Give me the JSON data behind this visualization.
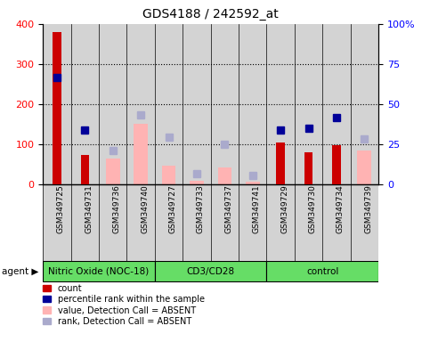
{
  "title": "GDS4188 / 242592_at",
  "samples": [
    "GSM349725",
    "GSM349731",
    "GSM349736",
    "GSM349740",
    "GSM349727",
    "GSM349733",
    "GSM349737",
    "GSM349741",
    "GSM349729",
    "GSM349730",
    "GSM349734",
    "GSM349739"
  ],
  "groups": [
    {
      "label": "Nitric Oxide (NOC-18)",
      "start": 0,
      "end": 4
    },
    {
      "label": "CD3/CD28",
      "start": 4,
      "end": 8
    },
    {
      "label": "control",
      "start": 8,
      "end": 12
    }
  ],
  "count": [
    380,
    75,
    null,
    null,
    null,
    null,
    null,
    null,
    105,
    80,
    99,
    null
  ],
  "percentile_rank": [
    267,
    137,
    null,
    null,
    null,
    null,
    null,
    null,
    137,
    140,
    168,
    null
  ],
  "value_absent": [
    null,
    null,
    65,
    152,
    47,
    10,
    42,
    7,
    null,
    null,
    null,
    85
  ],
  "rank_absent": [
    null,
    null,
    85,
    173,
    118,
    28,
    100,
    22,
    null,
    null,
    null,
    113
  ],
  "left_ylim": [
    0,
    400
  ],
  "right_ylim": [
    0,
    400
  ],
  "left_yticks": [
    0,
    100,
    200,
    300,
    400
  ],
  "right_yticks": [
    0,
    100,
    200,
    300,
    400
  ],
  "right_ylabels": [
    "0",
    "25",
    "50",
    "75",
    "100%"
  ],
  "color_count": "#cc0000",
  "color_percentile": "#000099",
  "color_value_absent": "#ffb3b3",
  "color_rank_absent": "#aaaacc",
  "bar_bg": "#d3d3d3",
  "group_bg": "#66dd66",
  "legend_items": [
    {
      "color": "#cc0000",
      "label": "count"
    },
    {
      "color": "#000099",
      "label": "percentile rank within the sample"
    },
    {
      "color": "#ffb3b3",
      "label": "value, Detection Call = ABSENT"
    },
    {
      "color": "#aaaacc",
      "label": "rank, Detection Call = ABSENT"
    }
  ]
}
